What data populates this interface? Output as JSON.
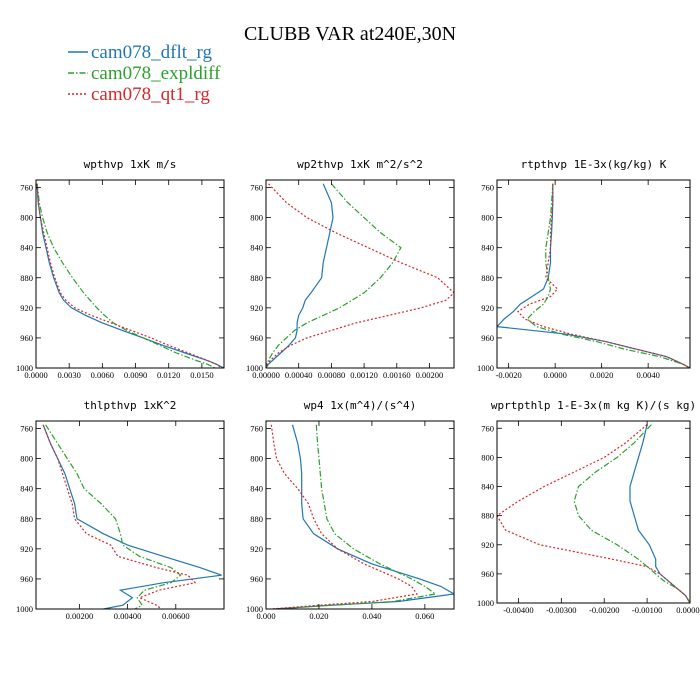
{
  "figure": {
    "title": "CLUBB VAR at240E,30N"
  },
  "colors": {
    "cam078_dflt_rg": "#1f77b4",
    "cam078_expldiff": "#2ca02c",
    "cam078_qt1_rg": "#d62728"
  },
  "legend": [
    {
      "name": "cam078_dflt_rg",
      "color": "#1f77b4",
      "dash": "solid"
    },
    {
      "name": "cam078_expldiff",
      "color": "#2ca02c",
      "dash": "dashdot"
    },
    {
      "name": "cam078_qt1_rg",
      "color": "#d62728",
      "dash": "dotted"
    }
  ],
  "chart_data": [
    {
      "type": "line",
      "title": "wpthvp  1xK m/s",
      "xlim": [
        0,
        0.017
      ],
      "ylim": [
        750,
        1000
      ],
      "xticks": [
        0,
        0.003,
        0.006,
        0.009,
        0.012,
        0.015
      ],
      "xtick_labels": [
        "0.0000",
        "0.0030",
        "0.0060",
        "0.0090",
        "0.0120",
        "0.0150"
      ],
      "yticks": [
        760,
        800,
        840,
        880,
        920,
        960,
        1000
      ],
      "y": [
        755,
        780,
        800,
        820,
        840,
        860,
        880,
        900,
        910,
        920,
        930,
        940,
        950,
        960,
        970,
        980,
        990,
        995,
        1000
      ],
      "series": [
        {
          "name": "cam078_dflt_rg",
          "values": [
            0.0001,
            0.0002,
            0.0004,
            0.0006,
            0.0009,
            0.0012,
            0.0016,
            0.0021,
            0.0025,
            0.0032,
            0.0045,
            0.006,
            0.0078,
            0.0097,
            0.0115,
            0.0135,
            0.0155,
            0.0163,
            0.017
          ]
        },
        {
          "name": "cam078_expldiff",
          "values": [
            0.0001,
            0.0003,
            0.0006,
            0.001,
            0.0016,
            0.0024,
            0.0033,
            0.0043,
            0.0049,
            0.0055,
            0.0062,
            0.007,
            0.0082,
            0.0097,
            0.0112,
            0.0127,
            0.0145,
            0.0155,
            0.0162
          ]
        },
        {
          "name": "cam078_qt1_rg",
          "values": [
            0.0001,
            0.0002,
            0.0004,
            0.0007,
            0.001,
            0.0013,
            0.0017,
            0.0022,
            0.0027,
            0.0035,
            0.005,
            0.0068,
            0.0086,
            0.0104,
            0.012,
            0.0138,
            0.0155,
            0.0163,
            0.0168
          ]
        }
      ]
    },
    {
      "type": "line",
      "title": "wp2thvp  1xK m^2/s^2",
      "xlim": [
        0,
        0.0023
      ],
      "ylim": [
        750,
        1000
      ],
      "xticks": [
        0,
        0.0004,
        0.0008,
        0.0012,
        0.0016,
        0.002
      ],
      "xtick_labels": [
        "0.00000",
        "0.00040",
        "0.00080",
        "0.00120",
        "0.00160",
        "0.00200"
      ],
      "yticks": [
        760,
        800,
        840,
        880,
        920,
        960,
        1000
      ],
      "y": [
        755,
        780,
        800,
        820,
        840,
        860,
        880,
        900,
        910,
        920,
        930,
        940,
        950,
        960,
        970,
        980,
        990,
        995,
        1000
      ],
      "series": [
        {
          "name": "cam078_dflt_rg",
          "values": [
            0.0007,
            0.0008,
            0.00082,
            0.00078,
            0.00074,
            0.0007,
            0.00068,
            0.00055,
            0.00048,
            0.00045,
            0.0004,
            0.00038,
            0.00038,
            0.00036,
            0.00028,
            0.00018,
            8e-05,
            3e-05,
            0
          ]
        },
        {
          "name": "cam078_expldiff",
          "values": [
            0.0008,
            0.001,
            0.0012,
            0.0014,
            0.00165,
            0.00155,
            0.0014,
            0.0012,
            0.00105,
            0.0009,
            0.0007,
            0.0005,
            0.00035,
            0.00025,
            0.00015,
            8e-05,
            3e-05,
            1e-05,
            0
          ]
        },
        {
          "name": "cam078_qt1_rg",
          "values": [
            3e-05,
            0.00025,
            0.0005,
            0.00085,
            0.00125,
            0.00165,
            0.0021,
            0.0023,
            0.0022,
            0.0019,
            0.0015,
            0.0011,
            0.0008,
            0.0005,
            0.0003,
            0.00015,
            5e-05,
            2e-05,
            0
          ]
        }
      ]
    },
    {
      "type": "line",
      "title": "rtpthvp  1E-3x(kg/kg) K",
      "xlim": [
        -0.0025,
        0.0058
      ],
      "ylim": [
        750,
        1000
      ],
      "xticks": [
        -0.002,
        0,
        0.002,
        0.004
      ],
      "xtick_labels": [
        "-0.0020",
        "0.0000",
        "0.0020",
        "0.0040"
      ],
      "yticks": [
        760,
        800,
        840,
        880,
        920,
        960,
        1000
      ],
      "y": [
        755,
        780,
        800,
        820,
        840,
        860,
        880,
        895,
        905,
        915,
        925,
        935,
        945,
        955,
        965,
        975,
        985,
        995,
        1000
      ],
      "series": [
        {
          "name": "cam078_dflt_rg",
          "values": [
            -0.0001,
            -0.0001,
            -0.00012,
            -0.00015,
            -0.0002,
            -0.0002,
            -0.0003,
            -0.0005,
            -0.001,
            -0.0015,
            -0.0018,
            -0.0022,
            -0.0025,
            0.0005,
            0.0022,
            0.0035,
            0.0048,
            0.0055,
            0.0058
          ]
        },
        {
          "name": "cam078_expldiff",
          "values": [
            -0.0001,
            -0.00015,
            -0.0002,
            -0.0003,
            -0.0004,
            -0.0004,
            -0.0003,
            -0.0002,
            -0.0003,
            -0.0005,
            -0.0009,
            -0.0012,
            -0.0008,
            0.0003,
            0.0018,
            0.003,
            0.0045,
            0.0055,
            0.0058
          ]
        },
        {
          "name": "cam078_qt1_rg",
          "values": [
            -0.0001,
            -0.0001,
            -0.00015,
            -0.0002,
            -0.0002,
            -0.0003,
            -0.0004,
            0.0001,
            -0.0002,
            -0.0011,
            -0.0016,
            -0.0013,
            -0.0005,
            0.0007,
            0.0022,
            0.0035,
            0.0048,
            0.0055,
            0.0058
          ]
        }
      ]
    },
    {
      "type": "line",
      "title": "thlpthvp  1xK^2",
      "xlim": [
        0.0002,
        0.008
      ],
      "ylim": [
        750,
        1000
      ],
      "xticks": [
        0.002,
        0.004,
        0.006
      ],
      "xtick_labels": [
        "0.00200",
        "0.00400",
        "0.00600"
      ],
      "yticks": [
        760,
        800,
        840,
        880,
        920,
        960,
        1000
      ],
      "y": [
        755,
        780,
        800,
        820,
        840,
        860,
        880,
        900,
        915,
        930,
        945,
        955,
        965,
        975,
        985,
        995,
        1000
      ],
      "series": [
        {
          "name": "cam078_dflt_rg",
          "values": [
            0.0005,
            0.0008,
            0.0011,
            0.0014,
            0.0016,
            0.0018,
            0.0019,
            0.003,
            0.004,
            0.0055,
            0.007,
            0.0079,
            0.0055,
            0.0037,
            0.0042,
            0.0038,
            0.003
          ]
        },
        {
          "name": "cam078_expldiff",
          "values": [
            0.0006,
            0.0011,
            0.0015,
            0.0019,
            0.0022,
            0.0029,
            0.0035,
            0.0037,
            0.0038,
            0.0045,
            0.0058,
            0.0062,
            0.0058,
            0.0047,
            0.0044,
            0.0046,
            0.0043
          ]
        },
        {
          "name": "cam078_qt1_rg",
          "values": [
            0.0005,
            0.0008,
            0.0011,
            0.0013,
            0.0015,
            0.0017,
            0.0018,
            0.0023,
            0.0033,
            0.0036,
            0.0052,
            0.0065,
            0.0068,
            0.0053,
            0.0045,
            0.0052,
            0.0054
          ]
        }
      ]
    },
    {
      "type": "line",
      "title": "wp4  1x(m^4)/(s^4)",
      "xlim": [
        0,
        0.071
      ],
      "ylim": [
        750,
        1000
      ],
      "xticks": [
        0,
        0.02,
        0.04,
        0.06
      ],
      "xtick_labels": [
        "0.000",
        "0.020",
        "0.040",
        "0.060"
      ],
      "yticks": [
        760,
        800,
        840,
        880,
        920,
        960,
        1000
      ],
      "y": [
        755,
        780,
        800,
        820,
        840,
        860,
        880,
        900,
        920,
        940,
        960,
        970,
        980,
        990,
        995,
        1000
      ],
      "series": [
        {
          "name": "cam078_dflt_rg",
          "values": [
            0.01,
            0.012,
            0.013,
            0.0135,
            0.0135,
            0.0135,
            0.014,
            0.018,
            0.027,
            0.04,
            0.058,
            0.066,
            0.071,
            0.05,
            0.025,
            0.003
          ]
        },
        {
          "name": "cam078_expldiff",
          "values": [
            0.019,
            0.0195,
            0.02,
            0.0205,
            0.021,
            0.022,
            0.023,
            0.026,
            0.033,
            0.043,
            0.055,
            0.06,
            0.064,
            0.048,
            0.025,
            0.004
          ]
        },
        {
          "name": "cam078_qt1_rg",
          "values": [
            0.002,
            0.003,
            0.004,
            0.007,
            0.012,
            0.016,
            0.018,
            0.021,
            0.027,
            0.037,
            0.05,
            0.055,
            0.057,
            0.04,
            0.02,
            0.002
          ]
        }
      ]
    },
    {
      "type": "line",
      "title": "wprtpthlp  1-E-3x(m kg K)/(s kg)",
      "xlim": [
        -0.0045,
        0
      ],
      "ylim": [
        750,
        1000
      ],
      "xticks": [
        -0.004,
        -0.003,
        -0.002,
        -0.001,
        0
      ],
      "xtick_labels": [
        "-0.00400",
        "-0.00300",
        "-0.00200",
        "-0.00100",
        "0.00000"
      ],
      "yticks": [
        760,
        800,
        840,
        880,
        920,
        960,
        1000
      ],
      "y": [
        755,
        780,
        800,
        820,
        840,
        860,
        880,
        900,
        920,
        940,
        950,
        960,
        970,
        980,
        990,
        995,
        1000
      ],
      "series": [
        {
          "name": "cam078_dflt_rg",
          "values": [
            -0.001,
            -0.0011,
            -0.0012,
            -0.0013,
            -0.0014,
            -0.0014,
            -0.0013,
            -0.0012,
            -0.00095,
            -0.0008,
            -0.0008,
            -0.0007,
            -0.0005,
            -0.0003,
            -0.0001,
            -5e-05,
            0
          ]
        },
        {
          "name": "cam078_expldiff",
          "values": [
            -0.0009,
            -0.0013,
            -0.0017,
            -0.0022,
            -0.0026,
            -0.0027,
            -0.0026,
            -0.0023,
            -0.0017,
            -0.0012,
            -0.001,
            -0.0008,
            -0.0006,
            -0.0003,
            -0.0001,
            -5e-05,
            0
          ]
        },
        {
          "name": "cam078_qt1_rg",
          "values": [
            -0.001,
            -0.0015,
            -0.002,
            -0.0027,
            -0.0034,
            -0.004,
            -0.0045,
            -0.0043,
            -0.0035,
            -0.0018,
            -0.001,
            -0.0007,
            -0.0005,
            -0.0003,
            -0.0001,
            -5e-05,
            0
          ]
        }
      ]
    }
  ]
}
